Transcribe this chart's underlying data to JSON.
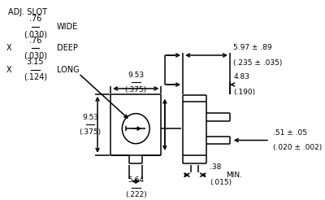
{
  "bg_color": "#ffffff",
  "line_color": "#000000",
  "text_color": "#000000",
  "fig_width": 4.0,
  "fig_height": 2.46,
  "dpi": 100,
  "annotations": {
    "adj_slot": "ADJ. SLOT",
    "wide_top": ".76",
    "wide_bot": "(.030)",
    "wide_label": "WIDE",
    "deep_top": ".76",
    "deep_bot": "(.030)",
    "deep_label": "DEEP",
    "long_top": "3.15",
    "long_bot": "(.124)",
    "long_label": "LONG",
    "dim_top_top": "9.53",
    "dim_top_bot": "(.375)",
    "dim_right1_top": "5.97 ± .89",
    "dim_right1_bot": "(.235 ± .035)",
    "dim_right2_top": "4.83",
    "dim_right2_bot": "(.190)",
    "dim_left_top": "9.53",
    "dim_left_bot": "(.375)",
    "dim_bot_top": "5.64",
    "dim_bot_bot": "(.222)",
    "dim_pin_top": ".51 ± .05",
    "dim_pin_bot": "(.020 ± .002)",
    "dim_min_top": ".38",
    "dim_min_bot": "(.015)",
    "min_label": "MIN.",
    "x_label": "X"
  }
}
